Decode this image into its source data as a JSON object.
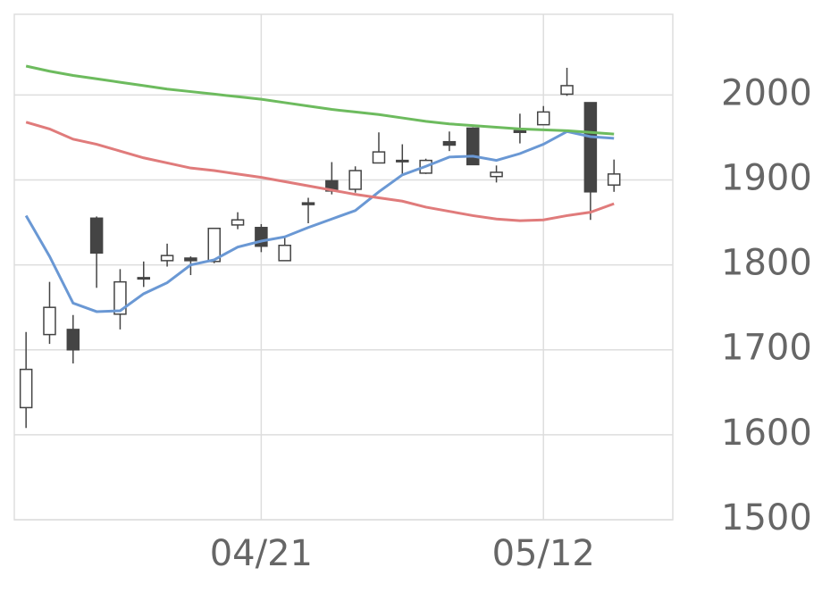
{
  "chart_data": {
    "type": "candlestick",
    "categories": [
      null,
      null,
      null,
      null,
      null,
      null,
      null,
      null,
      null,
      null,
      "04/21",
      null,
      null,
      null,
      null,
      null,
      null,
      null,
      null,
      null,
      null,
      null,
      "05/12",
      null,
      null,
      null
    ],
    "open": [
      1632,
      1718,
      1724,
      1855,
      1742,
      1784,
      1805,
      1808,
      1804,
      1847,
      1844,
      1805,
      1873,
      1899,
      1889,
      1920,
      1923,
      1908,
      1945,
      1961,
      1904,
      1958,
      1965,
      2001,
      1991,
      1894
    ],
    "high": [
      1721,
      1780,
      1741,
      1857,
      1795,
      1804,
      1825,
      1810,
      1843,
      1862,
      1848,
      1832,
      1879,
      1921,
      1916,
      1956,
      1942,
      1925,
      1957,
      1962,
      1917,
      1978,
      1987,
      2032,
      1991,
      1924
    ],
    "low": [
      1608,
      1707,
      1684,
      1773,
      1724,
      1774,
      1798,
      1788,
      1802,
      1842,
      1815,
      1805,
      1849,
      1883,
      1885,
      1920,
      1907,
      1907,
      1934,
      1918,
      1897,
      1943,
      1965,
      1999,
      1853,
      1886
    ],
    "close": [
      1677,
      1750,
      1700,
      1814,
      1780,
      1785,
      1811,
      1805,
      1843,
      1853,
      1822,
      1823,
      1871,
      1887,
      1911,
      1933,
      1922,
      1923,
      1941,
      1918,
      1909,
      1956,
      1980,
      2011,
      1886,
      1907
    ],
    "up_color": "#ffffff",
    "down_color": "#444444",
    "edge_color": "#444444",
    "lines": [
      {
        "color": "#6a98d4",
        "values": [
          1858,
          1810,
          1755,
          1745,
          1746,
          1766,
          1779,
          1800,
          1806,
          1821,
          1828,
          1833,
          1844,
          1854,
          1864,
          1886,
          1906,
          1916,
          1927,
          1928,
          1923,
          1931,
          1942,
          1957,
          1951,
          1949
        ]
      },
      {
        "color": "#e07b7b",
        "values": [
          1968,
          1960,
          1948,
          1942,
          1934,
          1926,
          1920,
          1914,
          1911,
          1907,
          1903,
          1898,
          1893,
          1888,
          1883,
          1879,
          1875,
          1868,
          1863,
          1858,
          1854,
          1852,
          1853,
          1858,
          1862,
          1872
        ]
      },
      {
        "color": "#6dbb5e",
        "values": [
          2034,
          2028,
          2023,
          2019,
          2015,
          2011,
          2007,
          2004,
          2001,
          1998,
          1995,
          1991,
          1987,
          1983,
          1980,
          1977,
          1973,
          1969,
          1966,
          1964,
          1962,
          1960,
          1959,
          1958,
          1956,
          1954
        ]
      }
    ],
    "ylim": [
      1500,
      2095
    ],
    "yticks": [
      1500,
      1600,
      1700,
      1800,
      1900,
      2000
    ],
    "y_axis_side": "right",
    "grid": true
  }
}
